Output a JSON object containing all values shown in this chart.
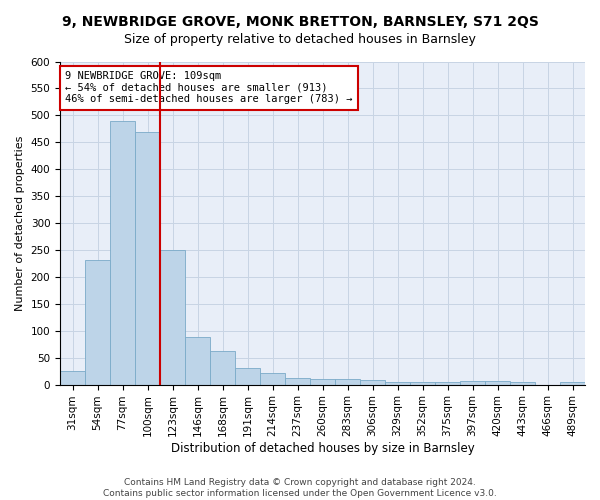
{
  "title_line1": "9, NEWBRIDGE GROVE, MONK BRETTON, BARNSLEY, S71 2QS",
  "title_line2": "Size of property relative to detached houses in Barnsley",
  "xlabel": "Distribution of detached houses by size in Barnsley",
  "ylabel": "Number of detached properties",
  "footer_line1": "Contains HM Land Registry data © Crown copyright and database right 2024.",
  "footer_line2": "Contains public sector information licensed under the Open Government Licence v3.0.",
  "categories": [
    "31sqm",
    "54sqm",
    "77sqm",
    "100sqm",
    "123sqm",
    "146sqm",
    "168sqm",
    "191sqm",
    "214sqm",
    "237sqm",
    "260sqm",
    "283sqm",
    "306sqm",
    "329sqm",
    "352sqm",
    "375sqm",
    "397sqm",
    "420sqm",
    "443sqm",
    "466sqm",
    "489sqm"
  ],
  "values": [
    25,
    232,
    490,
    470,
    250,
    88,
    63,
    30,
    22,
    13,
    11,
    10,
    8,
    5,
    4,
    4,
    7,
    7,
    4,
    0,
    5
  ],
  "bar_color": "#bdd4e8",
  "bar_edge_color": "#7aaac8",
  "vline_x_index": 3,
  "vline_color": "#cc0000",
  "annotation_text": "9 NEWBRIDGE GROVE: 109sqm\n← 54% of detached houses are smaller (913)\n46% of semi-detached houses are larger (783) →",
  "annotation_box_color": "#ffffff",
  "annotation_box_edge_color": "#cc0000",
  "ylim": [
    0,
    600
  ],
  "yticks": [
    0,
    50,
    100,
    150,
    200,
    250,
    300,
    350,
    400,
    450,
    500,
    550,
    600
  ],
  "background_color": "#ffffff",
  "plot_bg_color": "#e8eef8",
  "grid_color": "#c8d4e4",
  "title1_fontsize": 10,
  "title2_fontsize": 9,
  "axis_label_fontsize": 8.5,
  "tick_fontsize": 7.5,
  "annotation_fontsize": 7.5,
  "footer_fontsize": 6.5,
  "ylabel_fontsize": 8
}
